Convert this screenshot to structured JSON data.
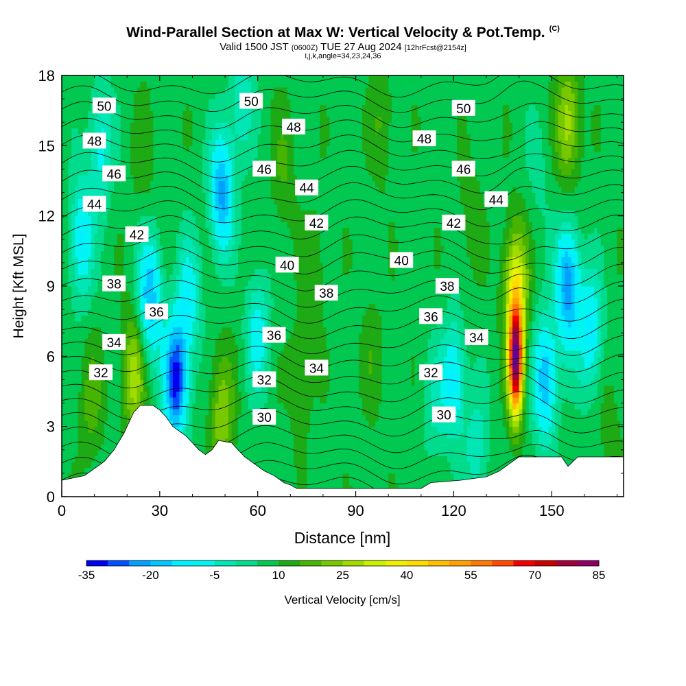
{
  "header": {
    "title": "Wind-Parallel Section at Max W: Vertical Velocity & Pot.Temp.",
    "title_tag": "(C)",
    "valid_a": "Valid 1500 JST",
    "valid_utc": "(0600Z)",
    "valid_b": "TUE 27 Aug 2024",
    "fcst": "[12hrFcst@2154z]",
    "indices": "i,j,k,angle=34,23,24,36"
  },
  "chart_data": {
    "type": "heatmap",
    "title": "Wind-Parallel Section at Max W: Vertical Velocity & Pot.Temp.",
    "xlabel": "Distance [nm]",
    "ylabel": "Height [Kft MSL]",
    "xlim": [
      0,
      172
    ],
    "ylim": [
      0,
      18
    ],
    "x_ticks": [
      0,
      30,
      60,
      90,
      120,
      150
    ],
    "y_ticks": [
      0,
      3,
      6,
      9,
      12,
      15,
      18
    ],
    "colorbar": {
      "label": "Vertical Velocity [cm/s]",
      "min": -35,
      "max": 85,
      "step": 5,
      "tick_labels": [
        "-35",
        "-20",
        "-5",
        "10",
        "25",
        "40",
        "55",
        "70",
        "85"
      ],
      "colors": [
        "#0000f0",
        "#0050ff",
        "#00a0ff",
        "#00c8ff",
        "#00f0ff",
        "#00f5f0",
        "#00e6b4",
        "#00dc8c",
        "#00c850",
        "#1eaa14",
        "#46b400",
        "#78c800",
        "#a0dc00",
        "#c8f000",
        "#eef000",
        "#ffdc00",
        "#ffbe00",
        "#ffa000",
        "#ff7800",
        "#ff4a00",
        "#f00000",
        "#c80000",
        "#a0003c",
        "#8c0064",
        "#640096"
      ]
    },
    "background_w": 8,
    "w_features": [
      {
        "x": 6,
        "z": 11,
        "w": -12
      },
      {
        "x": 12,
        "z": 15,
        "w": -8
      },
      {
        "x": 9,
        "z": 4,
        "w": 17
      },
      {
        "x": 22,
        "z": 5.2,
        "w": 28
      },
      {
        "x": 25,
        "z": 14.5,
        "w": 13
      },
      {
        "x": 27,
        "z": 8.5,
        "w": -20
      },
      {
        "x": 35,
        "z": 5,
        "w": -33
      },
      {
        "x": 39,
        "z": 8.5,
        "w": -8
      },
      {
        "x": 49,
        "z": 3.5,
        "w": 24
      },
      {
        "x": 49,
        "z": 13,
        "w": -22
      },
      {
        "x": 55,
        "z": 17,
        "w": -5
      },
      {
        "x": 60,
        "z": 7,
        "w": -8
      },
      {
        "x": 68,
        "z": 14,
        "w": 15
      },
      {
        "x": 73,
        "z": 5,
        "w": 15
      },
      {
        "x": 78,
        "z": 10,
        "w": 13
      },
      {
        "x": 95,
        "z": 6,
        "w": 13
      },
      {
        "x": 98,
        "z": 16,
        "w": 15
      },
      {
        "x": 114,
        "z": 4,
        "w": 0
      },
      {
        "x": 120,
        "z": 5,
        "w": -12
      },
      {
        "x": 125,
        "z": 12,
        "w": 13
      },
      {
        "x": 127,
        "z": 2,
        "w": -3
      },
      {
        "x": 139,
        "z": 5.8,
        "w": 84
      },
      {
        "x": 139,
        "z": 9,
        "w": 35
      },
      {
        "x": 146,
        "z": 14,
        "w": 3
      },
      {
        "x": 148,
        "z": 5,
        "w": -20
      },
      {
        "x": 155,
        "z": 9,
        "w": -25
      },
      {
        "x": 155,
        "z": 16,
        "w": 28
      },
      {
        "x": 162,
        "z": 7,
        "w": -12
      },
      {
        "x": 168,
        "z": 3,
        "w": 13
      }
    ],
    "theta_labels": [
      {
        "text": "50",
        "x": 13,
        "z": 16.7
      },
      {
        "text": "48",
        "x": 10,
        "z": 15.2
      },
      {
        "text": "46",
        "x": 16,
        "z": 13.8
      },
      {
        "text": "44",
        "x": 10,
        "z": 12.5
      },
      {
        "text": "42",
        "x": 23,
        "z": 11.2
      },
      {
        "text": "38",
        "x": 16,
        "z": 9.1
      },
      {
        "text": "36",
        "x": 29,
        "z": 7.9
      },
      {
        "text": "34",
        "x": 16,
        "z": 6.6
      },
      {
        "text": "32",
        "x": 12,
        "z": 5.3
      },
      {
        "text": "50",
        "x": 58,
        "z": 16.9
      },
      {
        "text": "48",
        "x": 71,
        "z": 15.8
      },
      {
        "text": "46",
        "x": 62,
        "z": 14.0
      },
      {
        "text": "44",
        "x": 75,
        "z": 13.2
      },
      {
        "text": "42",
        "x": 78,
        "z": 11.7
      },
      {
        "text": "40",
        "x": 69,
        "z": 9.9
      },
      {
        "text": "38",
        "x": 81,
        "z": 8.7
      },
      {
        "text": "36",
        "x": 65,
        "z": 6.9
      },
      {
        "text": "34",
        "x": 78,
        "z": 5.5
      },
      {
        "text": "32",
        "x": 62,
        "z": 5.0
      },
      {
        "text": "30",
        "x": 62,
        "z": 3.4
      },
      {
        "text": "50",
        "x": 123,
        "z": 16.6
      },
      {
        "text": "48",
        "x": 111,
        "z": 15.3
      },
      {
        "text": "46",
        "x": 123,
        "z": 14.0
      },
      {
        "text": "44",
        "x": 133,
        "z": 12.7
      },
      {
        "text": "42",
        "x": 120,
        "z": 11.7
      },
      {
        "text": "40",
        "x": 104,
        "z": 10.1
      },
      {
        "text": "38",
        "x": 118,
        "z": 9.0
      },
      {
        "text": "36",
        "x": 113,
        "z": 7.7
      },
      {
        "text": "34",
        "x": 127,
        "z": 6.8
      },
      {
        "text": "32",
        "x": 113,
        "z": 5.3
      },
      {
        "text": "30",
        "x": 117,
        "z": 3.5
      }
    ],
    "terrain": [
      [
        0,
        0.7
      ],
      [
        7,
        0.9
      ],
      [
        10,
        1.2
      ],
      [
        13,
        1.5
      ],
      [
        16,
        2.0
      ],
      [
        19,
        2.7
      ],
      [
        22,
        3.6
      ],
      [
        24,
        3.9
      ],
      [
        28,
        3.9
      ],
      [
        30,
        3.7
      ],
      [
        32,
        3.4
      ],
      [
        34,
        3.0
      ],
      [
        36,
        2.8
      ],
      [
        38,
        2.6
      ],
      [
        40,
        2.3
      ],
      [
        42,
        2.0
      ],
      [
        44,
        1.8
      ],
      [
        46,
        2.0
      ],
      [
        48,
        2.4
      ],
      [
        52,
        2.3
      ],
      [
        54,
        2.0
      ],
      [
        56,
        1.7
      ],
      [
        58,
        1.5
      ],
      [
        60,
        1.3
      ],
      [
        62,
        1.1
      ],
      [
        65,
        0.9
      ],
      [
        68,
        0.6
      ],
      [
        70,
        0.5
      ],
      [
        72,
        0.35
      ],
      [
        110,
        0.35
      ],
      [
        113,
        0.6
      ],
      [
        122,
        0.7
      ],
      [
        130,
        0.85
      ],
      [
        134,
        1.1
      ],
      [
        137,
        1.4
      ],
      [
        140,
        1.7
      ],
      [
        153,
        1.7
      ],
      [
        155,
        1.3
      ],
      [
        158,
        1.7
      ],
      [
        172,
        1.7
      ]
    ]
  }
}
